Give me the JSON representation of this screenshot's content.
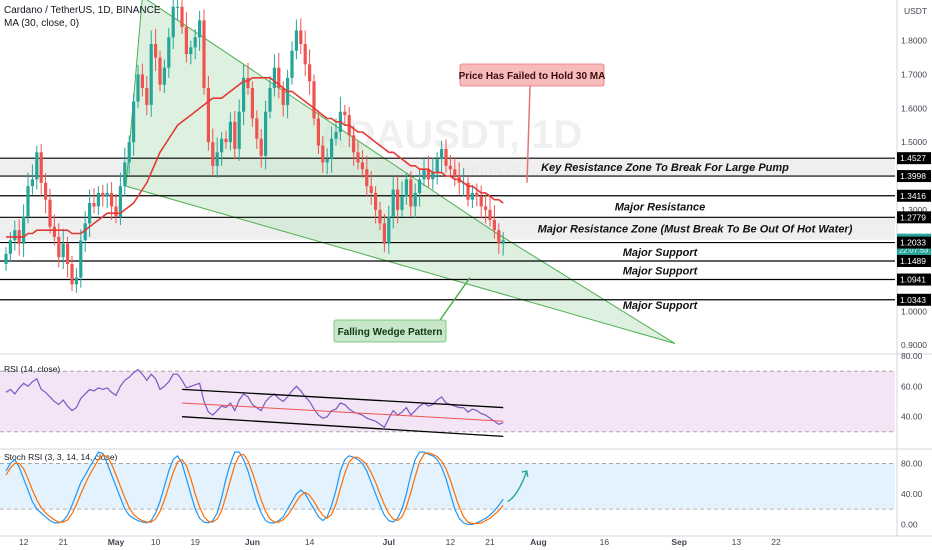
{
  "header": {
    "title": "Cardano / TetherUS, 1D, BINANCE",
    "ma_label": "MA (30, close, 0)"
  },
  "watermark": {
    "ticker": "ADAUSDT, 1D",
    "name": "Cardano / TetherUS"
  },
  "colors": {
    "up": "#26a69a",
    "down": "#ef5350",
    "ma": "#e53935",
    "wedge_fill": "#c8e6c9",
    "wedge_stroke": "#4caf50",
    "rsi_band": "#f3e5f5",
    "stoch_band": "#e3f2fd",
    "rsi_line": "#7e57c2",
    "stoch_k": "#2196f3",
    "stoch_d": "#ff6d00",
    "callout_red_bg": "#f8bbbb",
    "callout_green_bg": "#c8e6c9",
    "price_tag": "#26a69a"
  },
  "chart_data": [
    {
      "type": "candlestick",
      "name": "price",
      "ylim": [
        0.88,
        1.92
      ],
      "y_ticks": [
        "1.9000",
        "1.8000",
        "1.7000",
        "1.6000",
        "1.5000",
        "1.4000",
        "1.3000",
        "1.2000",
        "1.1000",
        "1.0000",
        "0.9000"
      ],
      "y_tick_values": [
        1.9,
        1.8,
        1.7,
        1.6,
        1.5,
        1.4,
        1.3,
        1.2,
        1.1,
        1.0,
        0.9
      ],
      "axis_unit": "USDT",
      "x_labels": [
        "12",
        "21",
        "May",
        "10",
        "19",
        "Jun",
        "14",
        "Jul",
        "12",
        "21",
        "Aug",
        "16",
        "Sep",
        "13",
        "22"
      ],
      "x_label_days": [
        -7,
        2,
        14,
        23,
        32,
        45,
        58,
        76,
        90,
        99,
        110,
        125,
        142,
        155,
        164
      ],
      "closes": [
        1.17,
        1.21,
        1.24,
        1.2,
        1.28,
        1.37,
        1.39,
        1.47,
        1.38,
        1.33,
        1.25,
        1.22,
        1.16,
        1.2,
        1.14,
        1.08,
        1.1,
        1.21,
        1.26,
        1.32,
        1.31,
        1.35,
        1.34,
        1.35,
        1.31,
        1.28,
        1.37,
        1.44,
        1.5,
        1.62,
        1.7,
        1.66,
        1.61,
        1.79,
        1.75,
        1.67,
        1.72,
        1.81,
        1.9,
        1.9,
        1.84,
        1.76,
        1.78,
        1.81,
        1.86,
        1.66,
        1.5,
        1.43,
        1.47,
        1.51,
        1.5,
        1.56,
        1.48,
        1.59,
        1.69,
        1.66,
        1.57,
        1.51,
        1.46,
        1.59,
        1.66,
        1.72,
        1.66,
        1.61,
        1.69,
        1.77,
        1.83,
        1.79,
        1.73,
        1.68,
        1.57,
        1.49,
        1.44,
        1.45,
        1.51,
        1.53,
        1.59,
        1.58,
        1.52,
        1.47,
        1.44,
        1.42,
        1.37,
        1.35,
        1.3,
        1.26,
        1.2,
        1.28,
        1.36,
        1.3,
        1.34,
        1.39,
        1.31,
        1.35,
        1.39,
        1.42,
        1.39,
        1.41,
        1.45,
        1.48,
        1.43,
        1.42,
        1.4,
        1.38,
        1.38,
        1.33,
        1.35,
        1.34,
        1.31,
        1.3,
        1.27,
        1.24,
        1.2,
        1.21
      ],
      "ma30": [
        1.22,
        1.22,
        1.22,
        1.22,
        1.22,
        1.23,
        1.23,
        1.24,
        1.24,
        1.24,
        1.24,
        1.24,
        1.24,
        1.24,
        1.24,
        1.23,
        1.23,
        1.23,
        1.24,
        1.25,
        1.26,
        1.27,
        1.28,
        1.29,
        1.29,
        1.29,
        1.29,
        1.3,
        1.31,
        1.32,
        1.34,
        1.36,
        1.38,
        1.41,
        1.44,
        1.47,
        1.49,
        1.51,
        1.53,
        1.55,
        1.56,
        1.57,
        1.58,
        1.59,
        1.6,
        1.61,
        1.62,
        1.63,
        1.63,
        1.63,
        1.64,
        1.65,
        1.66,
        1.67,
        1.68,
        1.68,
        1.69,
        1.69,
        1.69,
        1.69,
        1.69,
        1.68,
        1.67,
        1.66,
        1.65,
        1.65,
        1.64,
        1.63,
        1.62,
        1.61,
        1.6,
        1.59,
        1.58,
        1.57,
        1.57,
        1.56,
        1.56,
        1.55,
        1.55,
        1.54,
        1.53,
        1.53,
        1.52,
        1.51,
        1.5,
        1.49,
        1.48,
        1.47,
        1.47,
        1.46,
        1.45,
        1.44,
        1.43,
        1.43,
        1.42,
        1.42,
        1.42,
        1.41,
        1.41,
        1.41,
        1.4,
        1.4,
        1.39,
        1.39,
        1.38,
        1.37,
        1.37,
        1.36,
        1.35,
        1.35,
        1.34,
        1.33,
        1.33,
        1.32
      ],
      "levels": [
        {
          "value": 1.4527,
          "label": "1.4527",
          "zone": "Key Resistance Zone To Break For Large Pump"
        },
        {
          "value": 1.3998,
          "label": "1.3998",
          "zone": ""
        },
        {
          "value": 1.3416,
          "label": "1.3416",
          "zone": "Major Resistance"
        },
        {
          "value": 1.2779,
          "label": "1.2779",
          "zone": "Major Resistance Zone (Must Break To Be Out Of Hot Water)"
        },
        {
          "value": 1.2119,
          "label": "1.2119",
          "zone": ""
        },
        {
          "value": 1.2033,
          "label": "1.2033",
          "zone": "Major Support"
        },
        {
          "value": 1.1489,
          "label": "1.1489",
          "zone": "Major Support"
        },
        {
          "value": 1.0941,
          "label": "1.0941",
          "zone": ""
        },
        {
          "value": 1.0343,
          "label": "1.0343",
          "zone": "Major Support"
        }
      ],
      "last_price": {
        "value": 1.2119,
        "label": "1.2119",
        "timer": "22:07:53"
      },
      "annotations": [
        "Price Has Failed to Hold 30 MA",
        "Falling Wedge Pattern"
      ]
    },
    {
      "type": "line",
      "name": "RSI (14, close)",
      "ylim": [
        20,
        80
      ],
      "y_ticks": [
        "80.00",
        "60.00",
        "40.00"
      ],
      "y_tick_values": [
        80,
        60,
        40
      ],
      "band": [
        30,
        70
      ],
      "values": [
        56,
        58,
        55,
        59,
        62,
        60,
        63,
        65,
        58,
        56,
        53,
        50,
        48,
        51,
        47,
        44,
        46,
        52,
        55,
        58,
        57,
        59,
        58,
        59,
        56,
        54,
        60,
        64,
        66,
        69,
        71,
        68,
        64,
        68,
        65,
        58,
        60,
        63,
        68,
        68,
        64,
        59,
        60,
        61,
        62,
        50,
        43,
        41,
        44,
        47,
        46,
        49,
        44,
        51,
        55,
        53,
        48,
        46,
        44,
        50,
        53,
        55,
        52,
        50,
        53,
        57,
        60,
        57,
        53,
        50,
        45,
        41,
        39,
        40,
        44,
        45,
        49,
        48,
        45,
        43,
        42,
        41,
        39,
        38,
        37,
        35,
        33,
        39,
        44,
        41,
        43,
        46,
        41,
        44,
        47,
        49,
        47,
        48,
        51,
        53,
        49,
        48,
        47,
        46,
        46,
        43,
        45,
        44,
        42,
        41,
        39,
        37,
        35,
        36
      ]
    },
    {
      "type": "line",
      "name": "Stoch RSI (3, 3, 14, 14, close)",
      "ylim": [
        -10,
        95
      ],
      "y_ticks": [
        "80.00",
        "40.00",
        "0.00"
      ],
      "y_tick_values": [
        80,
        40,
        0
      ],
      "band": [
        20,
        80
      ],
      "series": [
        {
          "name": "K",
          "values": [
            70,
            80,
            85,
            75,
            60,
            45,
            30,
            20,
            15,
            10,
            5,
            2,
            2,
            5,
            12,
            25,
            40,
            55,
            65,
            75,
            85,
            95,
            93,
            80,
            65,
            50,
            35,
            20,
            12,
            8,
            5,
            3,
            2,
            5,
            15,
            30,
            50,
            70,
            85,
            90,
            80,
            60,
            40,
            20,
            8,
            3,
            2,
            5,
            15,
            35,
            60,
            80,
            95,
            95,
            85,
            70,
            50,
            30,
            15,
            5,
            2,
            2,
            5,
            10,
            20,
            30,
            40,
            45,
            40,
            30,
            20,
            10,
            5,
            10,
            25,
            45,
            70,
            85,
            90,
            88,
            85,
            80,
            70,
            55,
            40,
            25,
            12,
            5,
            3,
            8,
            20,
            40,
            65,
            85,
            95,
            95,
            92,
            90,
            85,
            75,
            60,
            40,
            20,
            8,
            2,
            0,
            0,
            2,
            5,
            8,
            12,
            18,
            25,
            33
          ]
        },
        {
          "name": "D",
          "values": [
            65,
            74,
            80,
            80,
            73,
            60,
            45,
            32,
            22,
            15,
            10,
            6,
            3,
            3,
            6,
            14,
            26,
            40,
            53,
            65,
            75,
            85,
            91,
            89,
            79,
            65,
            50,
            35,
            22,
            13,
            8,
            5,
            3,
            3,
            7,
            17,
            32,
            50,
            68,
            82,
            85,
            77,
            60,
            40,
            23,
            10,
            4,
            3,
            7,
            18,
            37,
            58,
            78,
            90,
            92,
            83,
            68,
            50,
            32,
            17,
            7,
            3,
            3,
            6,
            12,
            20,
            30,
            38,
            42,
            38,
            30,
            20,
            12,
            8,
            13,
            27,
            47,
            67,
            82,
            88,
            88,
            84,
            78,
            68,
            55,
            40,
            26,
            14,
            7,
            5,
            10,
            23,
            42,
            63,
            82,
            92,
            94,
            92,
            89,
            83,
            73,
            58,
            40,
            23,
            10,
            3,
            1,
            1,
            2,
            5,
            8,
            13,
            18,
            25
          ]
        }
      ]
    }
  ]
}
